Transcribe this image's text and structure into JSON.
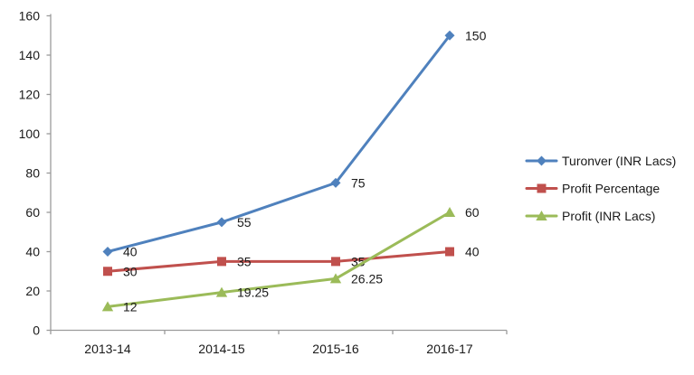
{
  "chart_data": {
    "type": "line",
    "title": "",
    "xlabel": "",
    "ylabel": "",
    "categories": [
      "2013-14",
      "2014-15",
      "2015-16",
      "2016-17"
    ],
    "series": [
      {
        "name": "Turonver (INR Lacs)",
        "color": "#4F81BD",
        "marker": "diamond",
        "values": [
          40,
          55,
          75,
          150
        ],
        "labels": [
          "40",
          "55",
          "75",
          "150"
        ]
      },
      {
        "name": "Profit Percentage",
        "color": "#C0504D",
        "marker": "square",
        "values": [
          30,
          35,
          35,
          40
        ],
        "labels": [
          "30",
          "35",
          "35",
          "40"
        ]
      },
      {
        "name": "Profit (INR Lacs)",
        "color": "#9BBB59",
        "marker": "triangle",
        "values": [
          12,
          19.25,
          26.25,
          60
        ],
        "labels": [
          "12",
          "19.25",
          "26.25",
          "60"
        ]
      }
    ],
    "ylim": [
      0,
      160
    ],
    "yticks": [
      0,
      20,
      40,
      60,
      80,
      100,
      120,
      140,
      160
    ],
    "grid": false,
    "legend_position": "right",
    "axis_color": "#9B9B9B",
    "label_color": "#1a1a1a"
  }
}
